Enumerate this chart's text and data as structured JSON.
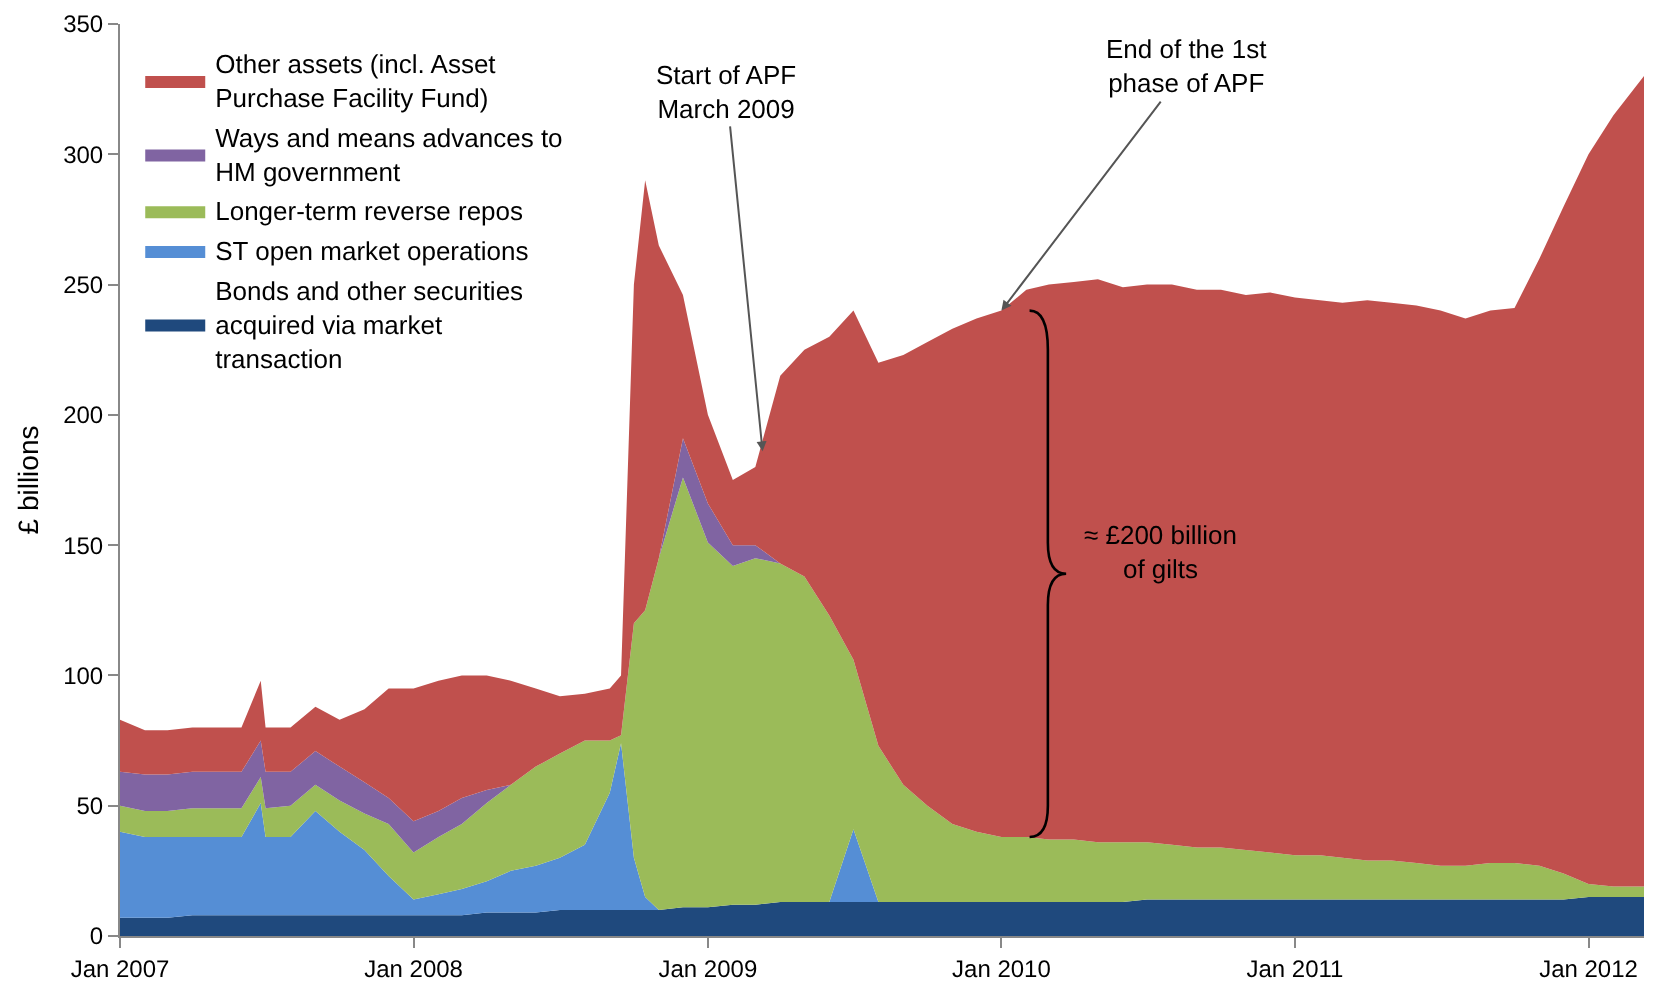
{
  "chart_data": {
    "type": "area",
    "stacked": true,
    "ylabel": "£ billions",
    "legend": "top left",
    "grid": false,
    "x": [
      "2007-01",
      "2007-02",
      "2007-03",
      "2007-04",
      "2007-05",
      "2007-06",
      "2007-06-25",
      "2007-07",
      "2007-08",
      "2007-09",
      "2007-10",
      "2007-11",
      "2007-12",
      "2008-01",
      "2008-02",
      "2008-03",
      "2008-04",
      "2008-05",
      "2008-06",
      "2008-07",
      "2008-08",
      "2008-09",
      "2008-09-15",
      "2008-10",
      "2008-10-15",
      "2008-11",
      "2008-12",
      "2009-01",
      "2009-02",
      "2009-03",
      "2009-04",
      "2009-05",
      "2009-06",
      "2009-07",
      "2009-08",
      "2009-09",
      "2009-10",
      "2009-11",
      "2009-12",
      "2010-01",
      "2010-02",
      "2010-03",
      "2010-04",
      "2010-05",
      "2010-06",
      "2010-07",
      "2010-08",
      "2010-09",
      "2010-10",
      "2010-11",
      "2010-12",
      "2011-01",
      "2011-02",
      "2011-03",
      "2011-04",
      "2011-05",
      "2011-06",
      "2011-07",
      "2011-08",
      "2011-09",
      "2011-10",
      "2011-11",
      "2011-12",
      "2012-01",
      "2012-02",
      "2012-03-10"
    ],
    "series": [
      {
        "name": "Bonds and other securities acquired via market transaction",
        "color": "#1f497d",
        "values": [
          7,
          7,
          7,
          8,
          8,
          8,
          8,
          8,
          8,
          8,
          8,
          8,
          8,
          8,
          8,
          8,
          9,
          9,
          9,
          10,
          10,
          10,
          10,
          10,
          10,
          10,
          11,
          11,
          12,
          12,
          13,
          13,
          13,
          13,
          13,
          13,
          13,
          13,
          13,
          13,
          13,
          13,
          13,
          13,
          13,
          14,
          14,
          14,
          14,
          14,
          14,
          14,
          14,
          14,
          14,
          14,
          14,
          14,
          14,
          14,
          14,
          14,
          14,
          15,
          15,
          15
        ]
      },
      {
        "name": "ST open market operations",
        "color": "#558ed5",
        "values": [
          33,
          31,
          31,
          30,
          30,
          30,
          43,
          30,
          30,
          40,
          32,
          25,
          15,
          6,
          8,
          10,
          12,
          16,
          18,
          20,
          25,
          45,
          64,
          20,
          5,
          0,
          0,
          0,
          0,
          0,
          0,
          0,
          0,
          28,
          0,
          0,
          0,
          0,
          0,
          0,
          0,
          0,
          0,
          0,
          0,
          0,
          0,
          0,
          0,
          0,
          0,
          0,
          0,
          0,
          0,
          0,
          0,
          0,
          0,
          0,
          0,
          0,
          0,
          0,
          0,
          0
        ]
      },
      {
        "name": "Longer-term reverse repos",
        "color": "#9bbb59",
        "values": [
          10,
          10,
          10,
          11,
          11,
          11,
          10,
          11,
          12,
          10,
          12,
          14,
          20,
          18,
          22,
          25,
          30,
          33,
          38,
          40,
          40,
          20,
          3,
          90,
          110,
          135,
          165,
          140,
          130,
          133,
          130,
          125,
          110,
          65,
          60,
          45,
          37,
          30,
          27,
          25,
          25,
          24,
          24,
          23,
          23,
          22,
          21,
          20,
          20,
          19,
          18,
          17,
          17,
          16,
          15,
          15,
          14,
          13,
          13,
          14,
          14,
          13,
          10,
          5,
          4,
          4
        ]
      },
      {
        "name": "Ways and means advances to HM government",
        "color": "#8064a2",
        "values": [
          13,
          14,
          14,
          14,
          14,
          14,
          14,
          14,
          13,
          13,
          13,
          12,
          10,
          12,
          10,
          10,
          5,
          0,
          0,
          0,
          0,
          0,
          0,
          0,
          0,
          0,
          15,
          15,
          8,
          5,
          0,
          0,
          0,
          0,
          0,
          0,
          0,
          0,
          0,
          0,
          0,
          0,
          0,
          0,
          0,
          0,
          0,
          0,
          0,
          0,
          0,
          0,
          0,
          0,
          0,
          0,
          0,
          0,
          0,
          0,
          0,
          0,
          0,
          0,
          0,
          0
        ]
      },
      {
        "name": "Other assets (incl. Asset Purchase Facility Fund)",
        "color": "#c0504d",
        "values": [
          20,
          17,
          17,
          17,
          17,
          17,
          23,
          17,
          17,
          17,
          18,
          28,
          42,
          51,
          50,
          47,
          44,
          40,
          30,
          22,
          18,
          20,
          23,
          130,
          165,
          120,
          55,
          34,
          25,
          30,
          72,
          87,
          107,
          134,
          147,
          165,
          178,
          190,
          197,
          202,
          210,
          213,
          214,
          216,
          213,
          214,
          215,
          214,
          214,
          213,
          215,
          214,
          213,
          213,
          215,
          214,
          214,
          213,
          210,
          212,
          213,
          233,
          256,
          280,
          296,
          311
        ]
      }
    ],
    "xlim": [
      "2007-01-01",
      "2012-03-10"
    ],
    "xticks": [
      {
        "value": "2007-01-01",
        "label": "Jan 2007"
      },
      {
        "value": "2008-01-01",
        "label": "Jan 2008"
      },
      {
        "value": "2009-01-01",
        "label": "Jan 2009"
      },
      {
        "value": "2010-01-01",
        "label": "Jan 2010"
      },
      {
        "value": "2011-01-01",
        "label": "Jan 2011"
      },
      {
        "value": "2012-01-01",
        "label": "Jan 2012"
      }
    ],
    "ylim": [
      0,
      350
    ],
    "yticks": [
      0,
      50,
      100,
      150,
      200,
      250,
      300,
      350
    ],
    "annotations": [
      {
        "text": "Start of APF\nMarch 2009",
        "x": "2009-03-10",
        "y": 186
      },
      {
        "text": "End of the 1st\nphase of APF",
        "x": "2010-01-01",
        "y": 240
      },
      "≈ £200 billion\nof gilts"
    ]
  }
}
